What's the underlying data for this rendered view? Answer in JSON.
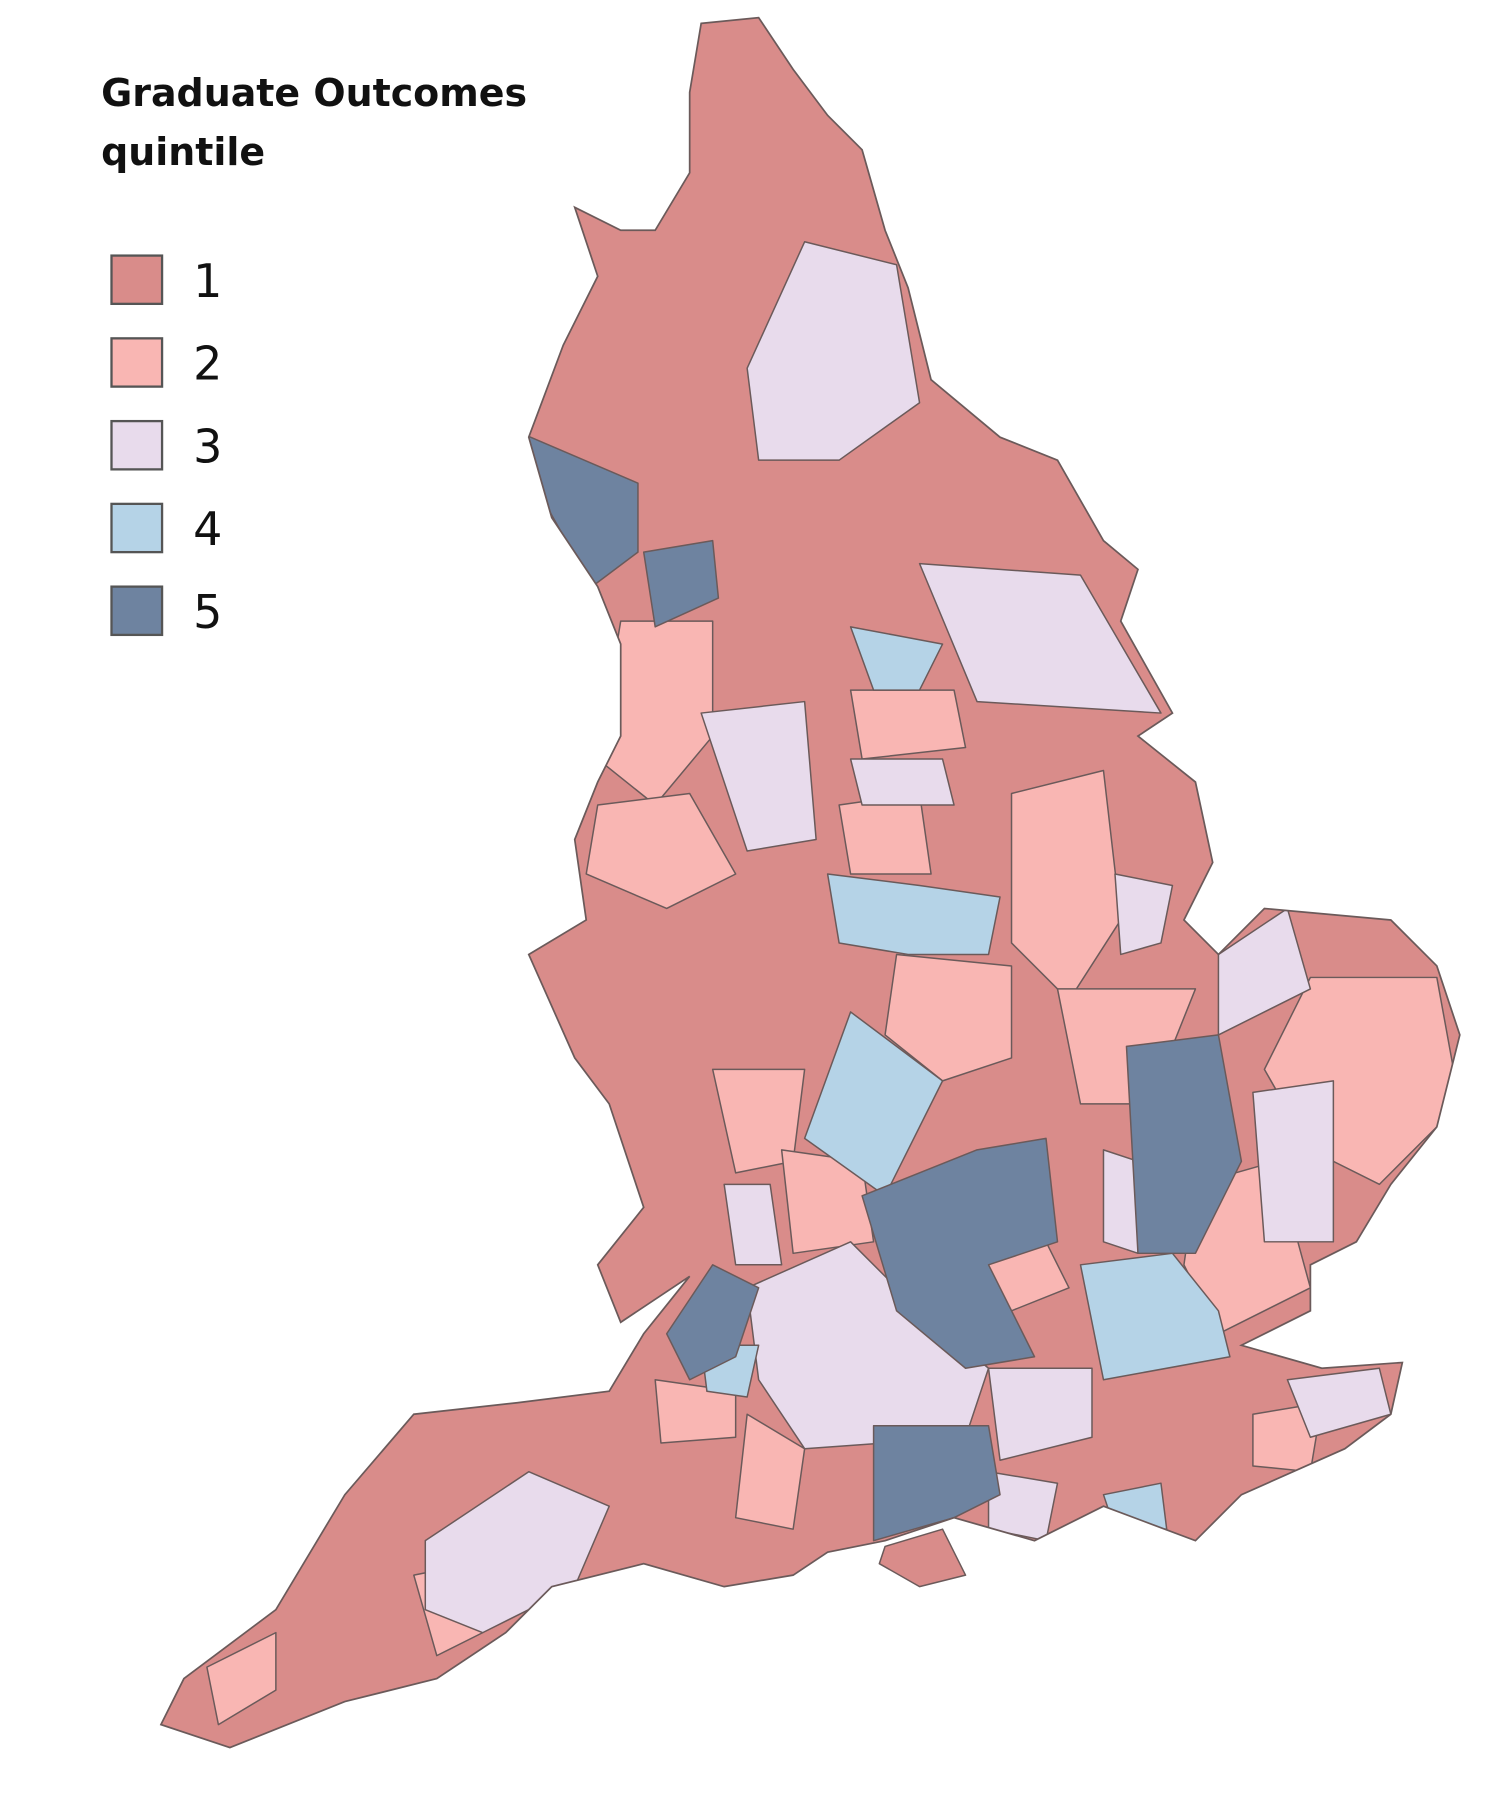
{
  "legend": {
    "title_lines": [
      "Graduate Outcomes",
      "quintile"
    ],
    "items": [
      {
        "label": "1",
        "color": "#d98c8a"
      },
      {
        "label": "2",
        "color": "#f9b6b3"
      },
      {
        "label": "3",
        "color": "#e8dbec"
      },
      {
        "label": "4",
        "color": "#b5d3e7"
      },
      {
        "label": "5",
        "color": "#6e83a0"
      }
    ]
  }
}
